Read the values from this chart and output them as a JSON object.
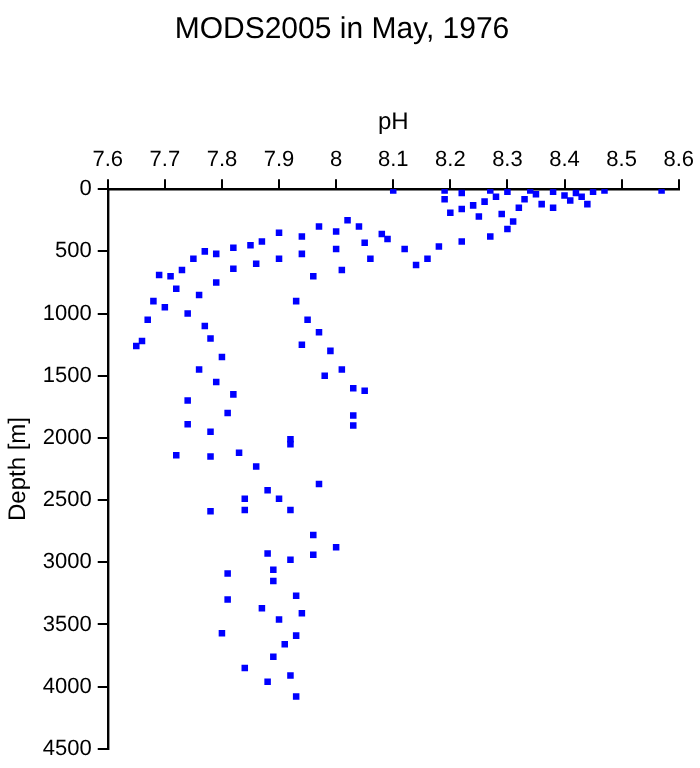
{
  "chart_data": {
    "type": "scatter",
    "title": "MODS2005 in May, 1976",
    "xlabel": "pH",
    "ylabel": "Depth [m]",
    "xlim": [
      7.6,
      8.6
    ],
    "xticks": [
      7.6,
      7.7,
      7.8,
      7.9,
      8,
      8.1,
      8.2,
      8.3,
      8.4,
      8.5,
      8.6
    ],
    "ylim": [
      4500,
      0
    ],
    "yticks": [
      0,
      500,
      1000,
      1500,
      2000,
      2500,
      3000,
      3500,
      4000,
      4500
    ],
    "grid": false,
    "legend": false,
    "marker": "square",
    "series": [
      {
        "color": "#0000ff",
        "x": [
          8.57,
          8.47,
          8.45,
          8.42,
          8.4,
          8.38,
          8.35,
          8.33,
          8.3,
          8.28,
          8.26,
          8.24,
          8.22,
          8.2,
          8.32,
          8.36,
          8.41,
          8.29,
          8.25,
          8.31,
          8.38,
          8.43,
          8.34,
          8.27,
          8.22,
          8.19,
          8.1,
          8.19,
          8.44,
          8.3,
          8.27,
          8.22,
          8.18,
          8.16,
          8.14,
          8.12,
          8.08,
          8.04,
          8.02,
          8.0,
          7.97,
          7.94,
          7.9,
          7.87,
          7.85,
          7.82,
          7.79,
          7.77,
          7.75,
          7.73,
          7.71,
          7.69,
          7.72,
          7.68,
          7.7,
          7.67,
          7.66,
          7.65,
          7.74,
          7.76,
          7.79,
          7.82,
          7.86,
          7.9,
          7.94,
          8.0,
          8.05,
          8.09,
          8.06,
          8.01,
          7.96,
          7.93,
          7.95,
          7.97,
          7.94,
          7.99,
          8.01,
          8.03,
          8.05,
          7.98,
          8.03,
          7.92,
          7.77,
          7.78,
          7.8,
          7.76,
          7.79,
          7.82,
          7.74,
          7.81,
          7.78,
          7.74,
          7.72,
          7.78,
          7.83,
          7.86,
          7.92,
          8.03,
          7.93,
          7.88,
          7.84,
          7.92,
          7.89,
          7.93,
          7.8,
          7.91,
          7.9,
          7.94,
          7.87,
          7.81,
          7.93,
          7.89,
          7.81,
          7.89,
          8.0,
          7.96,
          7.92,
          7.88,
          7.96,
          7.92,
          7.9,
          7.84,
          7.78,
          7.97,
          7.88,
          7.84
        ],
        "values": [
          10,
          10,
          20,
          30,
          50,
          20,
          40,
          80,
          20,
          60,
          100,
          130,
          160,
          190,
          150,
          120,
          90,
          200,
          220,
          260,
          150,
          60,
          10,
          10,
          30,
          80,
          10,
          10,
          120,
          320,
          380,
          420,
          460,
          560,
          610,
          480,
          360,
          300,
          250,
          340,
          300,
          380,
          350,
          420,
          450,
          470,
          520,
          500,
          560,
          650,
          700,
          690,
          800,
          900,
          950,
          1050,
          1220,
          1260,
          1000,
          850,
          750,
          640,
          600,
          560,
          520,
          480,
          430,
          400,
          560,
          650,
          700,
          900,
          1050,
          1150,
          1250,
          1300,
          1450,
          1600,
          1620,
          1500,
          1820,
          2010,
          1100,
          1200,
          1350,
          1450,
          1550,
          1650,
          1700,
          1800,
          1950,
          1890,
          2140,
          2150,
          2120,
          2230,
          2050,
          1900,
          4080,
          3960,
          3850,
          3910,
          3760,
          3590,
          3570,
          3660,
          3460,
          3410,
          3370,
          3300,
          3270,
          3150,
          3090,
          3060,
          2880,
          2940,
          2980,
          2930,
          2780,
          2580,
          2490,
          2580,
          2590,
          2370,
          2420,
          2490
        ]
      }
    ]
  }
}
